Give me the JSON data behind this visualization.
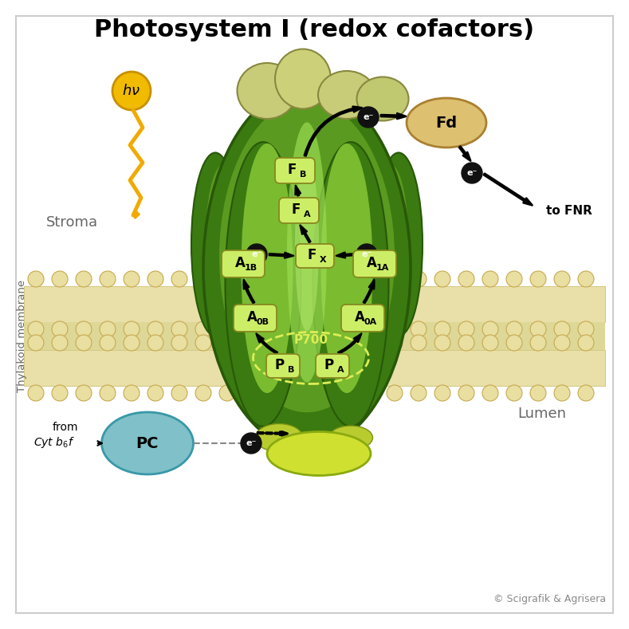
{
  "title": "Photosystem I (redox cofactors)",
  "title_fontsize": 22,
  "bg_color": "#f0f0f0",
  "white": "#ffffff",
  "mem_color": "#e8e0a8",
  "mem_edge": "#c8b860",
  "mem_ball_color": "#e8dfa0",
  "mem_ball_edge": "#c8a850",
  "protein_dark": "#3a7a10",
  "protein_mid": "#5a9a20",
  "protein_light": "#7abb30",
  "protein_lighter": "#9adb50",
  "protein_lightest": "#b8eb70",
  "iron_sulfur_color": "#c8d870",
  "fd_color": "#ddc070",
  "fd_edge": "#aa8030",
  "pc_color": "#80c0c8",
  "pc_edge": "#3898a8",
  "yellow_lump": "#d8e840",
  "label_bg": "#ccee66",
  "label_edge": "#888820",
  "electron_bg": "#111111",
  "electron_text": "#ffffff",
  "p700_ellipse_color": "#ddee55",
  "arrow_color": "#111111",
  "stroma_label": "Stroma",
  "lumen_label": "Lumen",
  "membrane_label": "Thylakoid membrane",
  "copyright": "© Scigrafik & Agrisera",
  "fig_width": 7.89,
  "fig_height": 7.89
}
